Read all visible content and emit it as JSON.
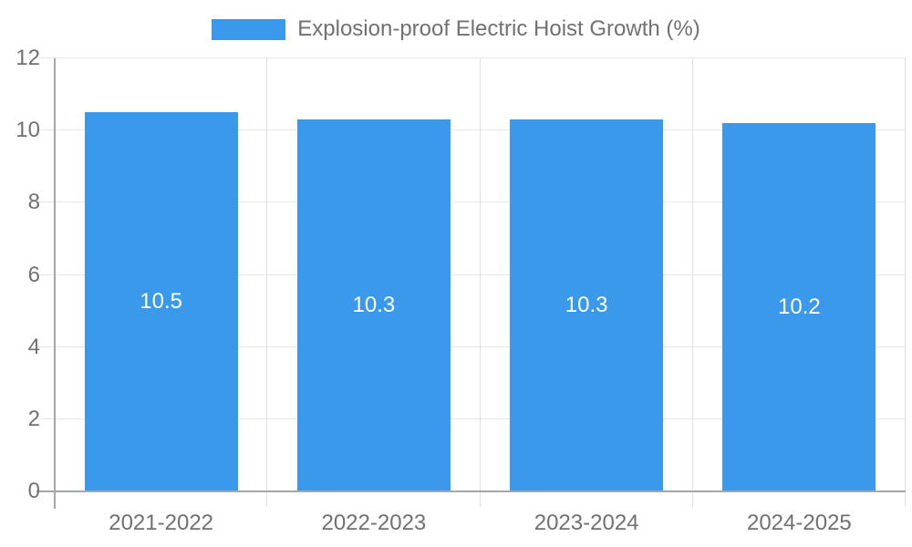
{
  "legend": {
    "label": "Explosion-proof Electric Hoist Growth (%)"
  },
  "chart_data": {
    "type": "bar",
    "title": "Explosion-proof Electric Hoist Growth (%)",
    "categories": [
      "2021-2022",
      "2022-2023",
      "2023-2024",
      "2024-2025"
    ],
    "values": [
      10.5,
      10.3,
      10.3,
      10.2
    ],
    "data_labels": [
      "10.5",
      "10.3",
      "10.3",
      "10.2"
    ],
    "xlabel": "",
    "ylabel": "",
    "ylim": [
      0,
      12
    ],
    "yticks": [
      0,
      2,
      4,
      6,
      8,
      10,
      12
    ],
    "grid": true,
    "legend_position": "top",
    "colors": {
      "bar": "#3B99EC",
      "bar_value_text": "#ffffff",
      "axis_text": "#717171",
      "gridline": "#e6e6e6",
      "separator": "#e0e0e0",
      "axis_line": "#a6a6a6",
      "background": "#ffffff"
    }
  }
}
